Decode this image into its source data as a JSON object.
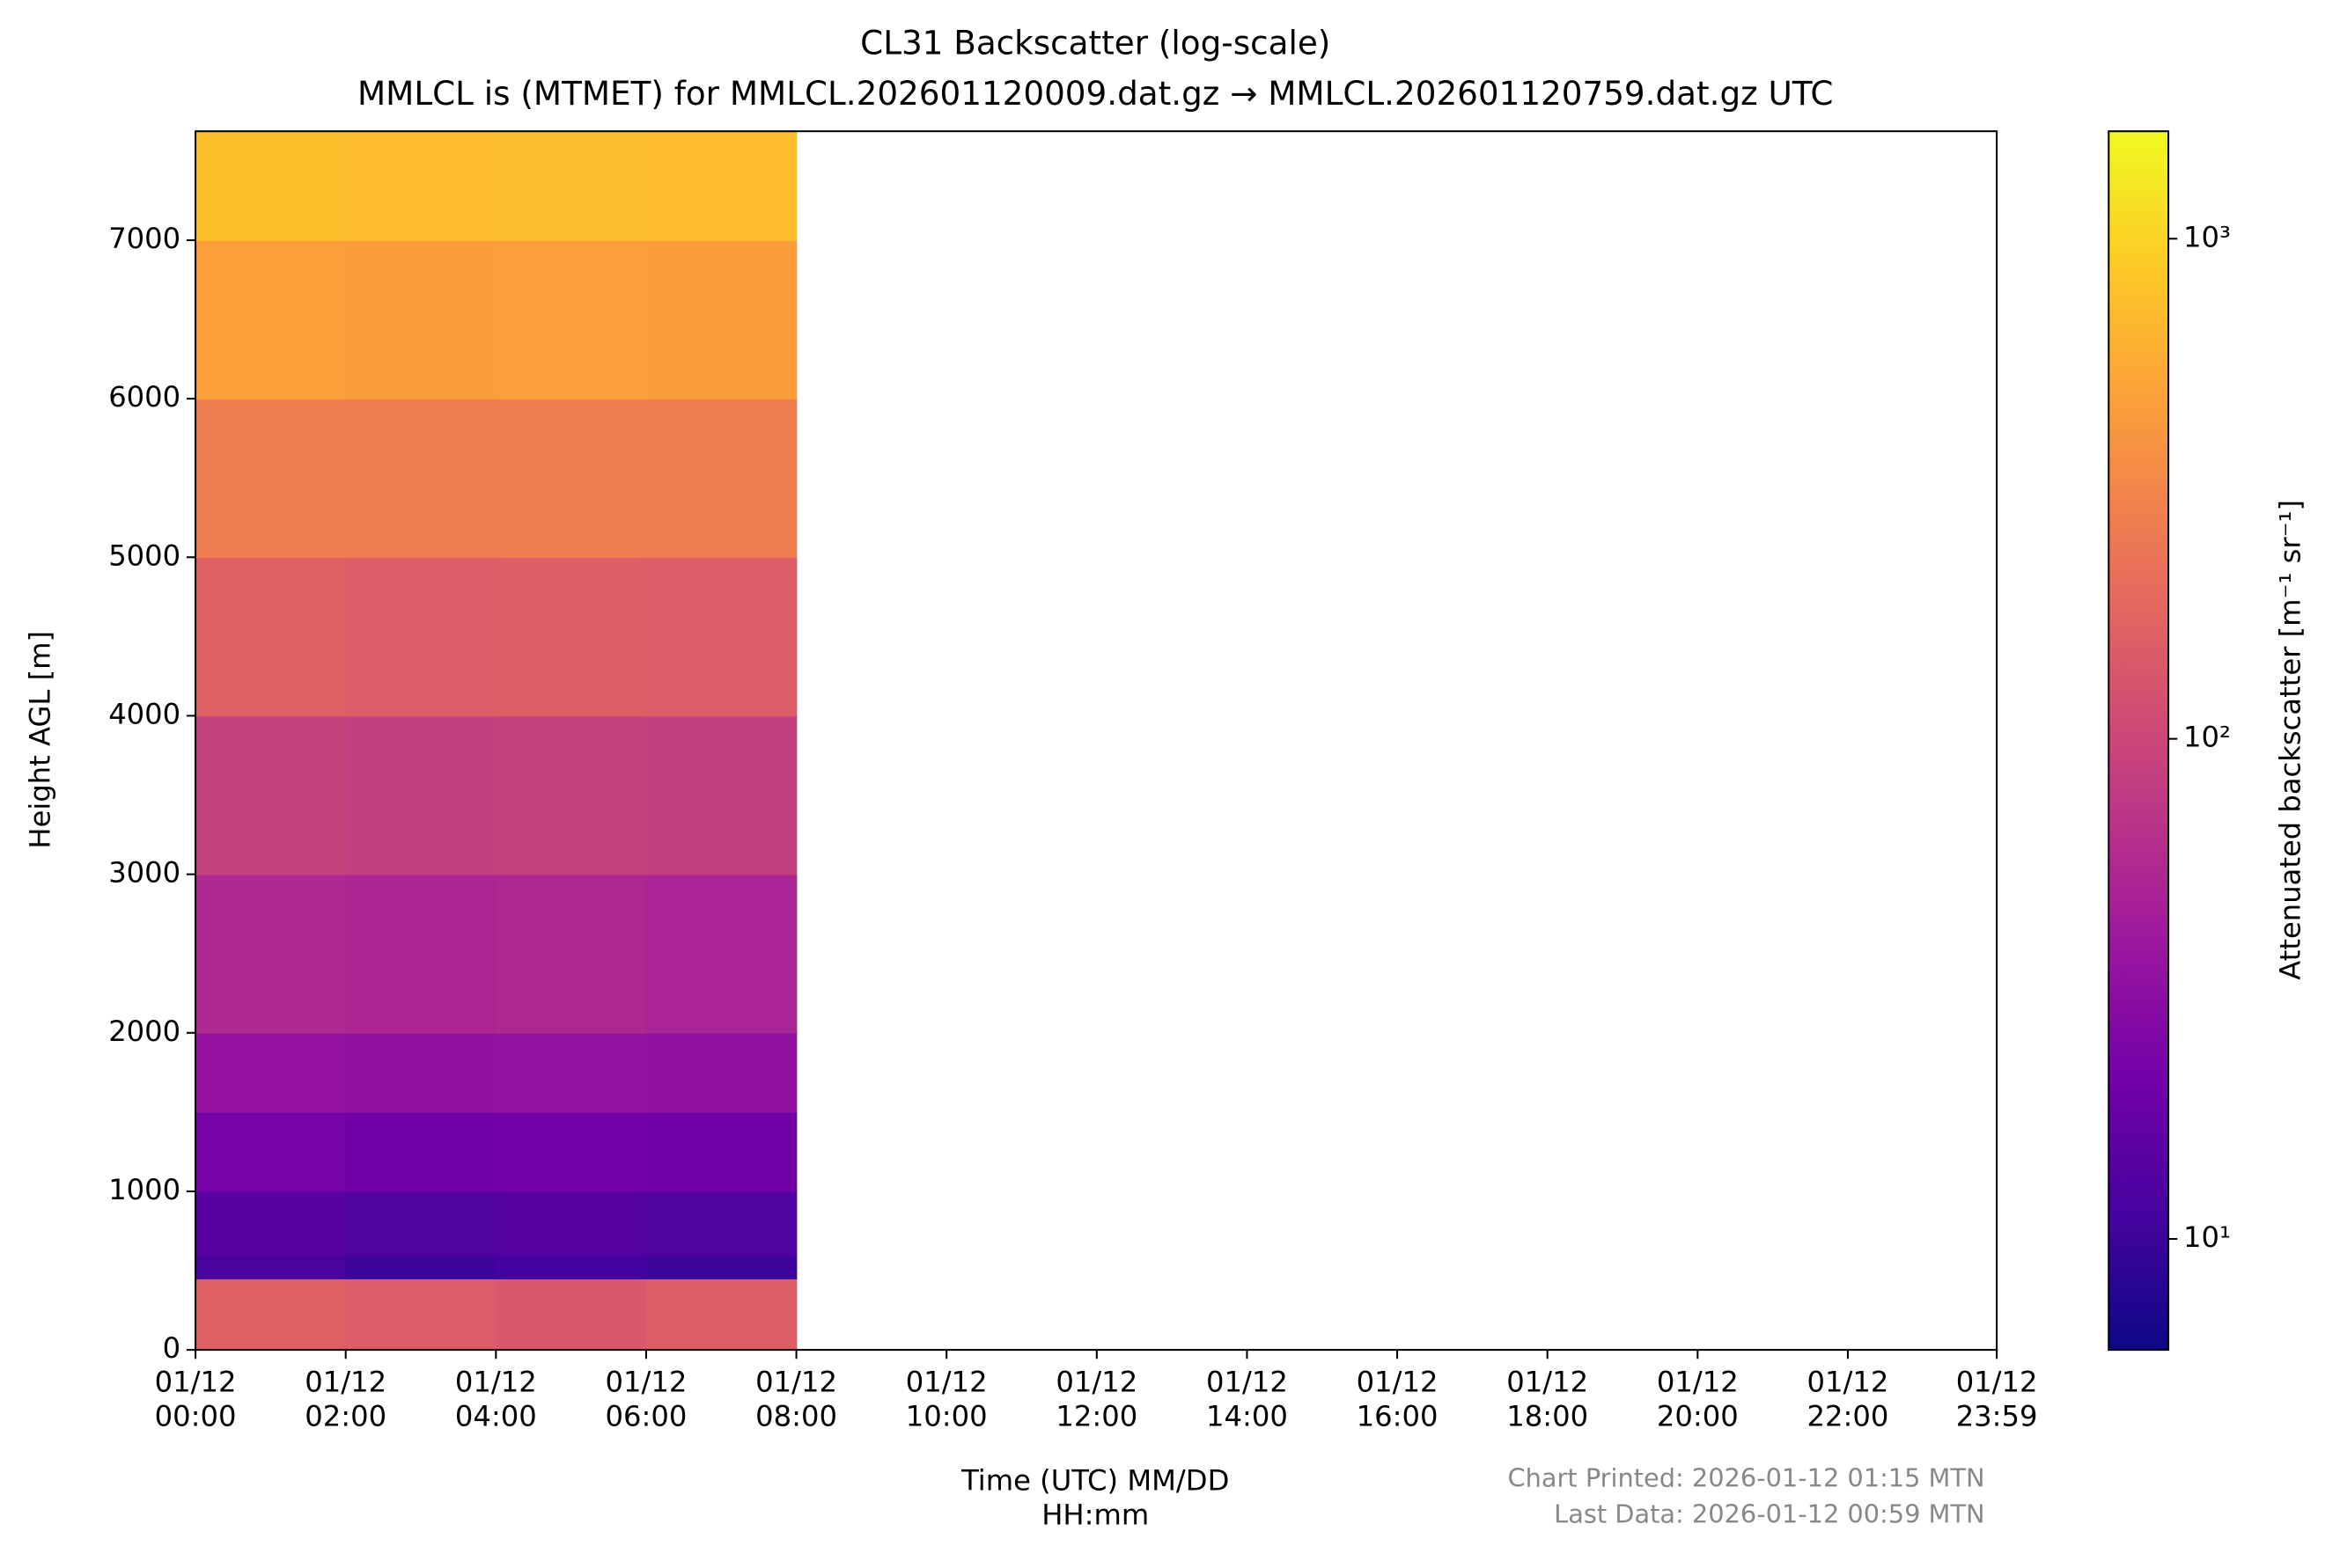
{
  "chart_data": {
    "type": "heatmap",
    "title": "CL31 Backscatter (log-scale)",
    "subtitle": "MMLCL is (MTMET) for MMLCL.202601120009.dat.gz → MMLCL.202601120759.dat.gz UTC",
    "x_label": "Time (UTC) MM/DD\nHH:mm",
    "y_label": "Height AGL [m]",
    "colorbar_label": "Attenuated backscatter [m⁻¹ sr⁻¹]",
    "footer": [
      "Chart Printed: 2026-01-12 01:15 MTN",
      "Last Data: 2026-01-12 00:59 MTN"
    ],
    "xlim": [
      0,
      23.983
    ],
    "xticks": [
      {
        "value": 0,
        "label": "01/12\n00:00"
      },
      {
        "value": 2,
        "label": "01/12\n02:00"
      },
      {
        "value": 4,
        "label": "01/12\n04:00"
      },
      {
        "value": 6,
        "label": "01/12\n06:00"
      },
      {
        "value": 8,
        "label": "01/12\n08:00"
      },
      {
        "value": 10,
        "label": "01/12\n10:00"
      },
      {
        "value": 12,
        "label": "01/12\n12:00"
      },
      {
        "value": 14,
        "label": "01/12\n14:00"
      },
      {
        "value": 16,
        "label": "01/12\n16:00"
      },
      {
        "value": 18,
        "label": "01/12\n18:00"
      },
      {
        "value": 20,
        "label": "01/12\n20:00"
      },
      {
        "value": 22,
        "label": "01/12\n22:00"
      },
      {
        "value": 23.983,
        "label": "01/12\n23:59"
      }
    ],
    "ylim": [
      0,
      7687
    ],
    "yticks": [
      0,
      1000,
      2000,
      3000,
      4000,
      5000,
      6000,
      7000
    ],
    "x_edges": [
      0,
      2,
      4,
      6,
      8
    ],
    "y_edges": [
      0,
      450,
      600,
      1000,
      1500,
      2000,
      3000,
      4000,
      5000,
      6000,
      7000,
      7687
    ],
    "values": [
      [
        160,
        150,
        140,
        155
      ],
      [
        12,
        10,
        11,
        10
      ],
      [
        14,
        13,
        14,
        13
      ],
      [
        22,
        20,
        21,
        20
      ],
      [
        35,
        33,
        34,
        32
      ],
      [
        55,
        52,
        54,
        50
      ],
      [
        90,
        85,
        88,
        85
      ],
      [
        160,
        150,
        155,
        150
      ],
      [
        280,
        270,
        275,
        270
      ],
      [
        480,
        460,
        470,
        460
      ],
      [
        750,
        720,
        740,
        720
      ]
    ],
    "log_scale_color": true,
    "clim": [
      6,
      1640
    ],
    "cticks": [
      {
        "value": 10,
        "label": "10¹"
      },
      {
        "value": 100,
        "label": "10²"
      },
      {
        "value": 1000,
        "label": "10³"
      }
    ],
    "colormap": [
      "#0d0887",
      "#46039f",
      "#7201a8",
      "#9c179e",
      "#bd3786",
      "#d8576b",
      "#ed7953",
      "#fb9f3a",
      "#fdca26",
      "#f0f921"
    ]
  }
}
